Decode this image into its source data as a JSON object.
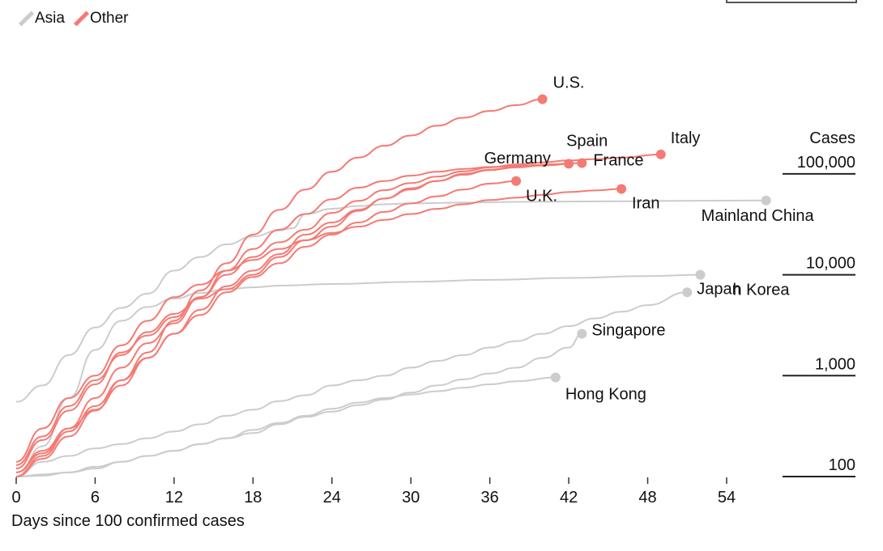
{
  "legend": [
    {
      "label": "Asia",
      "color": "#cccccc"
    },
    {
      "label": "Other",
      "color": "#f47a74"
    }
  ],
  "chart_data": {
    "type": "line",
    "title": "",
    "xlabel": "Days since 100 confirmed cases",
    "ylabel": "Cases",
    "y_scale": "log",
    "xlim": [
      0,
      57
    ],
    "ylim": [
      100,
      600000
    ],
    "x_ticks": [
      0,
      6,
      12,
      18,
      24,
      30,
      36,
      42,
      48,
      54
    ],
    "y_ticks": [
      {
        "value": 100,
        "label": "100"
      },
      {
        "value": 1000,
        "label": "1,000"
      },
      {
        "value": 10000,
        "label": "10,000"
      },
      {
        "value": 100000,
        "label": "100,000"
      }
    ],
    "y_axis_title": "Cases",
    "series": [
      {
        "name": "U.S.",
        "group": "Other",
        "points": [
          [
            0,
            100
          ],
          [
            2,
            160
          ],
          [
            4,
            280
          ],
          [
            6,
            500
          ],
          [
            8,
            900
          ],
          [
            10,
            1700
          ],
          [
            12,
            3500
          ],
          [
            14,
            7000
          ],
          [
            16,
            13000
          ],
          [
            18,
            25000
          ],
          [
            20,
            44000
          ],
          [
            22,
            70000
          ],
          [
            24,
            105000
          ],
          [
            26,
            145000
          ],
          [
            28,
            190000
          ],
          [
            30,
            240000
          ],
          [
            32,
            300000
          ],
          [
            34,
            360000
          ],
          [
            36,
            420000
          ],
          [
            38,
            480000
          ],
          [
            40,
            550000
          ]
        ]
      },
      {
        "name": "Italy",
        "group": "Other",
        "points": [
          [
            0,
            120
          ],
          [
            2,
            230
          ],
          [
            4,
            450
          ],
          [
            6,
            820
          ],
          [
            8,
            1700
          ],
          [
            10,
            2500
          ],
          [
            12,
            3800
          ],
          [
            14,
            6000
          ],
          [
            16,
            10000
          ],
          [
            18,
            15000
          ],
          [
            20,
            21000
          ],
          [
            22,
            28000
          ],
          [
            24,
            41000
          ],
          [
            26,
            54000
          ],
          [
            28,
            69000
          ],
          [
            30,
            81000
          ],
          [
            32,
            94000
          ],
          [
            34,
            106000
          ],
          [
            36,
            116000
          ],
          [
            38,
            124000
          ],
          [
            40,
            130000
          ],
          [
            42,
            136000
          ],
          [
            44,
            140000
          ],
          [
            46,
            145000
          ],
          [
            49,
            156000
          ]
        ]
      },
      {
        "name": "Spain",
        "group": "Other",
        "points": [
          [
            0,
            110
          ],
          [
            2,
            180
          ],
          [
            4,
            300
          ],
          [
            6,
            600
          ],
          [
            8,
            1200
          ],
          [
            10,
            2100
          ],
          [
            12,
            3300
          ],
          [
            14,
            6000
          ],
          [
            16,
            11000
          ],
          [
            18,
            18000
          ],
          [
            20,
            28000
          ],
          [
            22,
            40000
          ],
          [
            24,
            56000
          ],
          [
            26,
            73000
          ],
          [
            28,
            85000
          ],
          [
            30,
            96000
          ],
          [
            32,
            105000
          ],
          [
            34,
            112000
          ],
          [
            36,
            117000
          ],
          [
            38,
            120000
          ],
          [
            40,
            123000
          ],
          [
            42,
            126000
          ]
        ]
      },
      {
        "name": "France",
        "group": "Other",
        "points": [
          [
            0,
            100
          ],
          [
            2,
            150
          ],
          [
            4,
            250
          ],
          [
            6,
            450
          ],
          [
            8,
            900
          ],
          [
            10,
            1500
          ],
          [
            12,
            2600
          ],
          [
            14,
            4500
          ],
          [
            16,
            7700
          ],
          [
            18,
            11000
          ],
          [
            20,
            16000
          ],
          [
            22,
            25000
          ],
          [
            24,
            33000
          ],
          [
            26,
            44000
          ],
          [
            28,
            57000
          ],
          [
            30,
            70000
          ],
          [
            32,
            85000
          ],
          [
            34,
            98000
          ],
          [
            36,
            109000
          ],
          [
            38,
            116000
          ],
          [
            40,
            121000
          ],
          [
            43,
            128000
          ]
        ]
      },
      {
        "name": "Germany",
        "group": "Other",
        "points": [
          [
            0,
            130
          ],
          [
            2,
            250
          ],
          [
            4,
            500
          ],
          [
            6,
            900
          ],
          [
            8,
            1600
          ],
          [
            10,
            2700
          ],
          [
            12,
            4100
          ],
          [
            14,
            5800
          ],
          [
            16,
            7200
          ],
          [
            18,
            10000
          ],
          [
            20,
            15000
          ],
          [
            22,
            22000
          ],
          [
            24,
            30000
          ],
          [
            26,
            43000
          ],
          [
            28,
            57000
          ],
          [
            30,
            72000
          ],
          [
            32,
            85000
          ],
          [
            34,
            100000
          ],
          [
            36,
            110000
          ],
          [
            38,
            118000
          ],
          [
            41,
            125000
          ]
        ]
      },
      {
        "name": "U.K.",
        "group": "Other",
        "points": [
          [
            0,
            110
          ],
          [
            2,
            170
          ],
          [
            4,
            300
          ],
          [
            6,
            460
          ],
          [
            8,
            800
          ],
          [
            10,
            1500
          ],
          [
            12,
            2600
          ],
          [
            14,
            4000
          ],
          [
            16,
            6700
          ],
          [
            18,
            9500
          ],
          [
            20,
            13000
          ],
          [
            22,
            19000
          ],
          [
            24,
            25000
          ],
          [
            26,
            33000
          ],
          [
            28,
            42000
          ],
          [
            30,
            51000
          ],
          [
            32,
            60000
          ],
          [
            34,
            70000
          ],
          [
            36,
            80000
          ],
          [
            38,
            85000
          ]
        ]
      },
      {
        "name": "Iran",
        "group": "Other",
        "points": [
          [
            0,
            140
          ],
          [
            2,
            300
          ],
          [
            4,
            600
          ],
          [
            6,
            1000
          ],
          [
            8,
            2000
          ],
          [
            10,
            3500
          ],
          [
            12,
            6000
          ],
          [
            14,
            8000
          ],
          [
            16,
            11000
          ],
          [
            18,
            14000
          ],
          [
            20,
            18000
          ],
          [
            22,
            22000
          ],
          [
            24,
            26000
          ],
          [
            26,
            30000
          ],
          [
            28,
            35000
          ],
          [
            30,
            40000
          ],
          [
            32,
            45000
          ],
          [
            34,
            50000
          ],
          [
            36,
            55000
          ],
          [
            38,
            58000
          ],
          [
            40,
            62000
          ],
          [
            42,
            66000
          ],
          [
            44,
            68500
          ],
          [
            46,
            71000
          ]
        ]
      },
      {
        "name": "Mainland China",
        "group": "Asia",
        "points": [
          [
            0,
            550
          ],
          [
            2,
            800
          ],
          [
            4,
            1600
          ],
          [
            6,
            3000
          ],
          [
            8,
            4700
          ],
          [
            10,
            6500
          ],
          [
            12,
            11000
          ],
          [
            14,
            15000
          ],
          [
            16,
            20000
          ],
          [
            18,
            24000
          ],
          [
            20,
            27500
          ],
          [
            21,
            29000
          ],
          [
            22,
            40000
          ],
          [
            24,
            45000
          ],
          [
            26,
            48000
          ],
          [
            28,
            50000
          ],
          [
            30,
            51000
          ],
          [
            34,
            52000
          ],
          [
            40,
            53000
          ],
          [
            46,
            53500
          ],
          [
            50,
            54000
          ],
          [
            57,
            54500
          ]
        ]
      },
      {
        "name": "South Korea",
        "group": "Asia",
        "points": [
          [
            0,
            100
          ],
          [
            2,
            200
          ],
          [
            4,
            600
          ],
          [
            6,
            1800
          ],
          [
            8,
            3500
          ],
          [
            10,
            4800
          ],
          [
            12,
            5800
          ],
          [
            14,
            6600
          ],
          [
            16,
            7200
          ],
          [
            18,
            7500
          ],
          [
            20,
            7800
          ],
          [
            24,
            8100
          ],
          [
            30,
            8500
          ],
          [
            36,
            8900
          ],
          [
            42,
            9300
          ],
          [
            48,
            9700
          ],
          [
            52,
            10000
          ]
        ]
      },
      {
        "name": "Japan",
        "group": "Asia",
        "points": [
          [
            0,
            100
          ],
          [
            2,
            140
          ],
          [
            4,
            160
          ],
          [
            6,
            190
          ],
          [
            8,
            210
          ],
          [
            10,
            240
          ],
          [
            12,
            280
          ],
          [
            14,
            330
          ],
          [
            16,
            400
          ],
          [
            18,
            460
          ],
          [
            20,
            560
          ],
          [
            22,
            640
          ],
          [
            24,
            800
          ],
          [
            26,
            900
          ],
          [
            28,
            1000
          ],
          [
            30,
            1200
          ],
          [
            32,
            1400
          ],
          [
            34,
            1600
          ],
          [
            36,
            1900
          ],
          [
            38,
            2200
          ],
          [
            40,
            2600
          ],
          [
            42,
            3100
          ],
          [
            44,
            3700
          ],
          [
            46,
            4300
          ],
          [
            48,
            5000
          ],
          [
            51,
            6700
          ]
        ]
      },
      {
        "name": "Singapore",
        "group": "Asia",
        "points": [
          [
            0,
            100
          ],
          [
            2,
            105
          ],
          [
            4,
            110
          ],
          [
            6,
            120
          ],
          [
            8,
            140
          ],
          [
            10,
            160
          ],
          [
            12,
            180
          ],
          [
            14,
            210
          ],
          [
            16,
            240
          ],
          [
            18,
            270
          ],
          [
            20,
            330
          ],
          [
            22,
            390
          ],
          [
            24,
            440
          ],
          [
            26,
            510
          ],
          [
            28,
            580
          ],
          [
            30,
            680
          ],
          [
            32,
            800
          ],
          [
            34,
            920
          ],
          [
            36,
            1050
          ],
          [
            38,
            1200
          ],
          [
            40,
            1500
          ],
          [
            42,
            1900
          ],
          [
            43,
            2600
          ]
        ]
      },
      {
        "name": "Hong Kong",
        "group": "Asia",
        "points": [
          [
            0,
            100
          ],
          [
            2,
            102
          ],
          [
            4,
            110
          ],
          [
            6,
            125
          ],
          [
            8,
            140
          ],
          [
            10,
            160
          ],
          [
            12,
            180
          ],
          [
            14,
            210
          ],
          [
            16,
            240
          ],
          [
            18,
            290
          ],
          [
            20,
            340
          ],
          [
            22,
            400
          ],
          [
            24,
            470
          ],
          [
            26,
            540
          ],
          [
            28,
            600
          ],
          [
            30,
            650
          ],
          [
            32,
            700
          ],
          [
            34,
            760
          ],
          [
            36,
            820
          ],
          [
            38,
            880
          ],
          [
            41,
            960
          ]
        ]
      }
    ],
    "annotations": [
      {
        "label": "U.S.",
        "series": "U.S."
      },
      {
        "label": "Italy",
        "series": "Italy"
      },
      {
        "label": "Spain",
        "series": "Spain"
      },
      {
        "label": "France",
        "series": "France"
      },
      {
        "label": "Germany",
        "series": "Germany"
      },
      {
        "label": "U.K.",
        "series": "U.K."
      },
      {
        "label": "Iran",
        "series": "Iran"
      },
      {
        "label": "Mainland China",
        "series": "Mainland China"
      },
      {
        "label": "Japan",
        "series": "Japan"
      },
      {
        "label": "South Korea",
        "series": "South Korea",
        "text": "h Korea"
      },
      {
        "label": "Singapore",
        "series": "Singapore"
      },
      {
        "label": "Hong Kong",
        "series": "Hong Kong"
      }
    ],
    "legend_position": "top-left",
    "grid": false
  }
}
